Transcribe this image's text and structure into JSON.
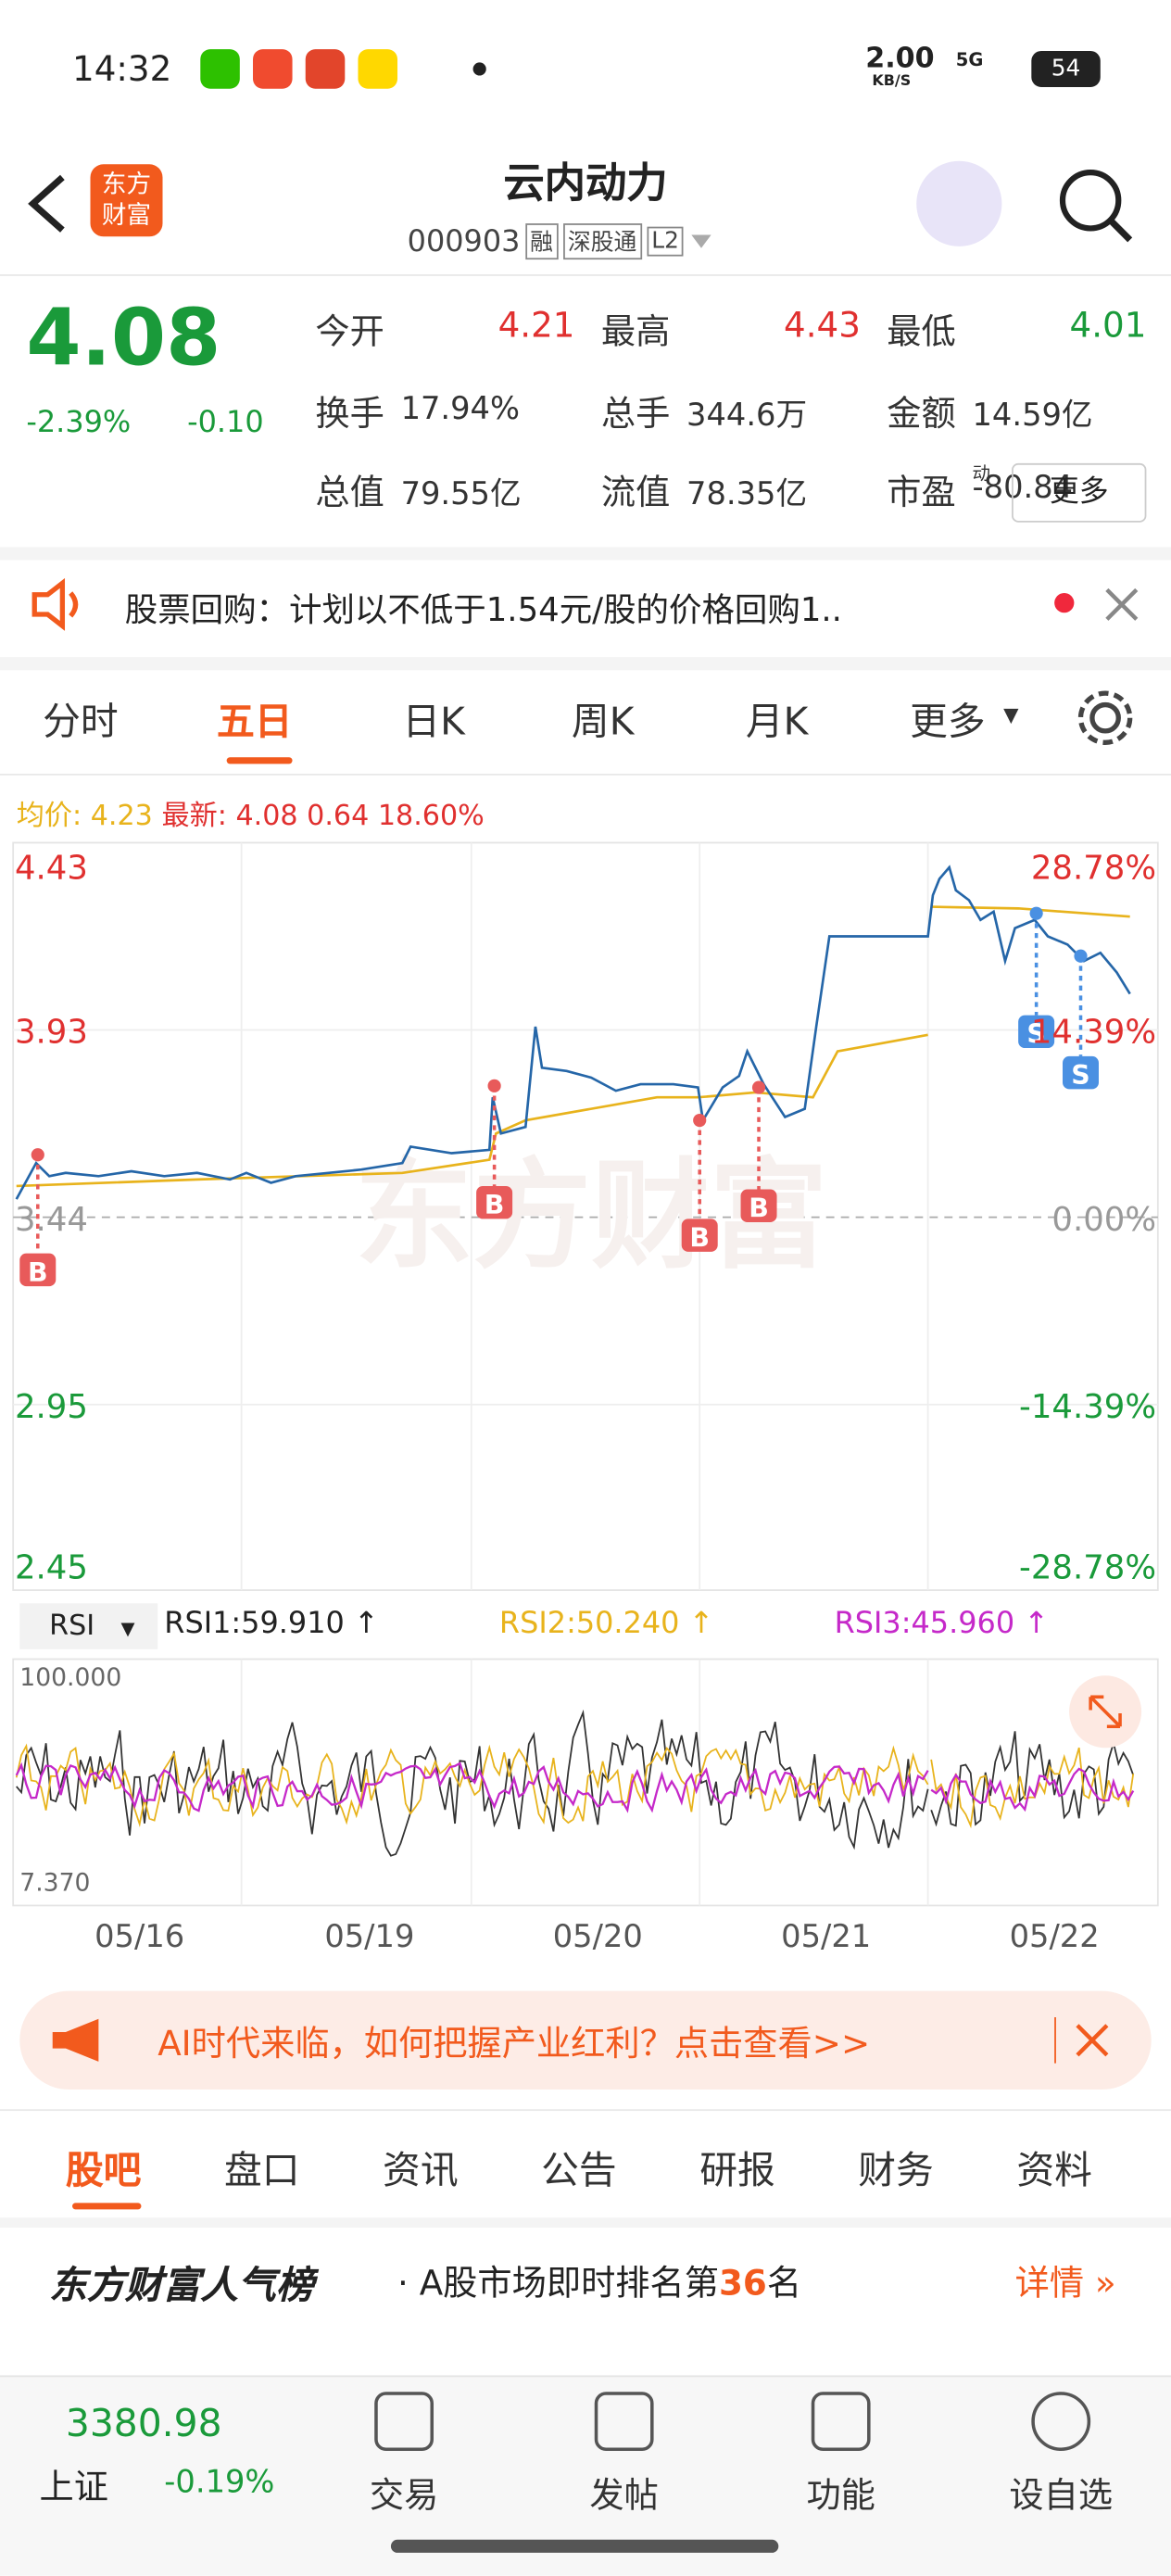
{
  "status": {
    "time": "14:32",
    "speed": "2.00",
    "speed_unit": "KB/S",
    "network": "5G",
    "battery": "54"
  },
  "header": {
    "title": "云内动力",
    "code": "000903",
    "tags": [
      "融",
      "深股通",
      "L2"
    ]
  },
  "quote": {
    "price": "4.08",
    "change_pct": "-2.39%",
    "change": "-0.10",
    "fields": [
      {
        "label": "今开",
        "value": "4.21"
      },
      {
        "label": "最高",
        "value": "4.43"
      },
      {
        "label": "最低",
        "value": "4.01"
      },
      {
        "label": "换手",
        "value": "17.94%"
      },
      {
        "label": "总手",
        "value": "344.6万"
      },
      {
        "label": "金额",
        "value": "14.59亿"
      },
      {
        "label": "总值",
        "value": "79.55亿"
      },
      {
        "label": "流值",
        "value": "78.35亿"
      },
      {
        "label": "市盈",
        "sup": "动",
        "value": "-80.84"
      }
    ],
    "more": "更多"
  },
  "notice": "股票回购：计划以不低于1.54元/股的价格回购1..",
  "tabs": [
    "分时",
    "五日",
    "日K",
    "周K",
    "月K",
    "更多"
  ],
  "chart": {
    "avg_label": "均价:",
    "avg": "4.23",
    "latest_label": "最新:",
    "latest": "4.08",
    "volume": "0.64",
    "pct": "18.60%",
    "left_axis": [
      "4.43",
      "3.93",
      "3.44",
      "2.95",
      "2.45"
    ],
    "right_axis": [
      "28.78%",
      "14.39%",
      "0.00%",
      "-14.39%",
      "-28.78%"
    ],
    "buy": "B",
    "sell": "S"
  },
  "rsi": {
    "selector": "RSI",
    "rsi1": "RSI1:59.910",
    "rsi2": "RSI2:50.240",
    "rsi3": "RSI3:45.960",
    "max": "100.000",
    "min": "7.370"
  },
  "dates": [
    "05/16",
    "05/19",
    "05/20",
    "05/21",
    "05/22"
  ],
  "ad": "AI时代来临，如何把握产业红利？点击查看>>",
  "subtabs": [
    "股吧",
    "盘口",
    "资讯",
    "公告",
    "研报",
    "财务",
    "资料"
  ],
  "popularity": {
    "brand": "东方财富人气榜",
    "text": "A股市场即时排名第",
    "rank": "36",
    "suffix": "名",
    "link": "详情"
  },
  "bottom": {
    "index_value": "3380.98",
    "index_name": "上证",
    "index_change": "-0.19%",
    "items": [
      "交易",
      "发帖",
      "功能",
      "设自选"
    ]
  }
}
